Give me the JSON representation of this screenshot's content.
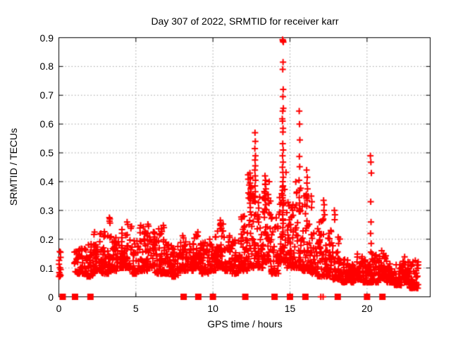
{
  "chart_data": {
    "type": "scatter",
    "title": "Day 307 of 2022, SRMTID for receiver karr",
    "xlabel": "GPS time / hours",
    "ylabel": "SRMTID / TECUs",
    "xlim": [
      0,
      24.1
    ],
    "ylim": [
      0,
      0.9
    ],
    "xticks": [
      0,
      5,
      10,
      15,
      20
    ],
    "xtick_labels": [
      "0",
      "5",
      "10",
      "15",
      "20"
    ],
    "yticks": [
      0,
      0.1,
      0.2,
      0.3,
      0.4,
      0.5,
      0.6,
      0.7,
      0.8,
      0.9
    ],
    "ytick_labels": [
      "0",
      "0.1",
      "0.2",
      "0.3",
      "0.4",
      "0.5",
      "0.6",
      "0.7",
      "0.8",
      "0.9"
    ],
    "grid": {
      "show": true,
      "style": "dotted",
      "color": "#a0a0a0"
    },
    "legend": "none",
    "marker": {
      "shape": "plus",
      "color": "#ff0000",
      "size": 9,
      "stroke": 2
    },
    "axis_color": "#000000",
    "background": "#ffffff",
    "band_clusters": [
      [
        0.0,
        0.12,
        0.07,
        0.16,
        14
      ],
      [
        1.0,
        1.75,
        0.08,
        0.17,
        48
      ],
      [
        1.75,
        2.25,
        0.07,
        0.2,
        40
      ],
      [
        2.25,
        2.75,
        0.09,
        0.22,
        44
      ],
      [
        2.75,
        3.25,
        0.08,
        0.24,
        44
      ],
      [
        3.25,
        3.75,
        0.09,
        0.21,
        44
      ],
      [
        3.75,
        4.25,
        0.1,
        0.24,
        44
      ],
      [
        4.25,
        4.75,
        0.1,
        0.26,
        44
      ],
      [
        4.75,
        5.25,
        0.08,
        0.2,
        40
      ],
      [
        5.25,
        5.75,
        0.09,
        0.25,
        44
      ],
      [
        5.75,
        6.25,
        0.1,
        0.24,
        44
      ],
      [
        6.25,
        6.75,
        0.08,
        0.24,
        44
      ],
      [
        6.75,
        7.25,
        0.08,
        0.2,
        40
      ],
      [
        7.25,
        7.75,
        0.07,
        0.18,
        40
      ],
      [
        7.75,
        8.25,
        0.09,
        0.22,
        44
      ],
      [
        8.25,
        8.75,
        0.09,
        0.2,
        40
      ],
      [
        8.75,
        9.25,
        0.1,
        0.22,
        44
      ],
      [
        9.25,
        9.75,
        0.08,
        0.19,
        40
      ],
      [
        9.75,
        10.25,
        0.09,
        0.21,
        40
      ],
      [
        10.25,
        10.75,
        0.1,
        0.26,
        44
      ],
      [
        10.75,
        11.25,
        0.09,
        0.22,
        44
      ],
      [
        11.25,
        11.75,
        0.08,
        0.2,
        40
      ],
      [
        11.75,
        12.25,
        0.09,
        0.28,
        44
      ],
      [
        12.25,
        12.75,
        0.1,
        0.43,
        48
      ],
      [
        12.75,
        13.25,
        0.1,
        0.35,
        44
      ],
      [
        13.25,
        13.75,
        0.12,
        0.4,
        48
      ],
      [
        13.75,
        14.25,
        0.08,
        0.28,
        44
      ],
      [
        14.25,
        14.75,
        0.12,
        0.45,
        44
      ],
      [
        14.75,
        15.25,
        0.1,
        0.33,
        44
      ],
      [
        15.25,
        15.75,
        0.1,
        0.4,
        44
      ],
      [
        15.75,
        16.25,
        0.09,
        0.38,
        44
      ],
      [
        16.25,
        16.75,
        0.08,
        0.3,
        40
      ],
      [
        16.75,
        17.25,
        0.07,
        0.3,
        40
      ],
      [
        17.25,
        17.75,
        0.07,
        0.25,
        40
      ],
      [
        17.75,
        18.25,
        0.06,
        0.22,
        40
      ],
      [
        18.25,
        18.75,
        0.05,
        0.13,
        40
      ],
      [
        18.75,
        19.25,
        0.05,
        0.12,
        40
      ],
      [
        19.25,
        19.75,
        0.06,
        0.15,
        44
      ],
      [
        19.75,
        20.25,
        0.05,
        0.13,
        40
      ],
      [
        20.25,
        20.75,
        0.05,
        0.15,
        44
      ],
      [
        20.75,
        21.25,
        0.06,
        0.15,
        44
      ],
      [
        21.25,
        21.75,
        0.05,
        0.13,
        40
      ],
      [
        21.75,
        22.25,
        0.04,
        0.12,
        40
      ],
      [
        22.25,
        22.75,
        0.05,
        0.14,
        50
      ],
      [
        22.75,
        23.35,
        0.03,
        0.13,
        50
      ]
    ],
    "outliers": [
      [
        2.32,
        0.225
      ],
      [
        3.28,
        0.275
      ],
      [
        3.31,
        0.27
      ],
      [
        3.29,
        0.263
      ],
      [
        3.32,
        0.256
      ],
      [
        4.43,
        0.26
      ],
      [
        4.47,
        0.251
      ],
      [
        5.78,
        0.252
      ],
      [
        5.82,
        0.245
      ],
      [
        6.78,
        0.248
      ],
      [
        6.82,
        0.24
      ],
      [
        9.02,
        0.225
      ],
      [
        10.48,
        0.266
      ],
      [
        10.52,
        0.256
      ],
      [
        10.5,
        0.247
      ],
      [
        12.4,
        0.43
      ],
      [
        12.43,
        0.41
      ],
      [
        12.41,
        0.395
      ],
      [
        12.44,
        0.375
      ],
      [
        12.39,
        0.355
      ],
      [
        12.42,
        0.34
      ],
      [
        12.4,
        0.325
      ],
      [
        12.43,
        0.31
      ],
      [
        12.73,
        0.57
      ],
      [
        12.75,
        0.54
      ],
      [
        12.72,
        0.515
      ],
      [
        12.76,
        0.49
      ],
      [
        12.73,
        0.475
      ],
      [
        12.75,
        0.455
      ],
      [
        12.72,
        0.44
      ],
      [
        12.74,
        0.42
      ],
      [
        12.76,
        0.405
      ],
      [
        12.73,
        0.385
      ],
      [
        12.75,
        0.365
      ],
      [
        12.72,
        0.345
      ],
      [
        12.74,
        0.33
      ],
      [
        13.38,
        0.42
      ],
      [
        13.42,
        0.405
      ],
      [
        13.4,
        0.39
      ],
      [
        13.44,
        0.375
      ],
      [
        13.36,
        0.36
      ],
      [
        13.41,
        0.35
      ],
      [
        13.39,
        0.335
      ],
      [
        13.43,
        0.32
      ],
      [
        13.37,
        0.305
      ],
      [
        14.52,
        0.893
      ],
      [
        14.55,
        0.89
      ],
      [
        14.57,
        0.885
      ],
      [
        14.54,
        0.888
      ],
      [
        14.55,
        0.815
      ],
      [
        14.53,
        0.79
      ],
      [
        14.56,
        0.72
      ],
      [
        14.54,
        0.695
      ],
      [
        14.57,
        0.655
      ],
      [
        14.53,
        0.645
      ],
      [
        14.5,
        0.618
      ],
      [
        14.52,
        0.61
      ],
      [
        14.55,
        0.585
      ],
      [
        14.54,
        0.572
      ],
      [
        14.53,
        0.532
      ],
      [
        14.56,
        0.51
      ],
      [
        14.52,
        0.49
      ],
      [
        14.55,
        0.468
      ],
      [
        14.51,
        0.45
      ],
      [
        14.54,
        0.432
      ],
      [
        14.56,
        0.415
      ],
      [
        14.53,
        0.4
      ],
      [
        14.55,
        0.385
      ],
      [
        14.52,
        0.37
      ],
      [
        14.54,
        0.352
      ],
      [
        14.56,
        0.335
      ],
      [
        14.53,
        0.318
      ],
      [
        14.55,
        0.3
      ],
      [
        14.52,
        0.285
      ],
      [
        14.54,
        0.27
      ],
      [
        14.56,
        0.255
      ],
      [
        14.53,
        0.24
      ],
      [
        14.55,
        0.225
      ],
      [
        14.52,
        0.21
      ],
      [
        15.6,
        0.645
      ],
      [
        15.62,
        0.6
      ],
      [
        15.64,
        0.545
      ],
      [
        15.61,
        0.487
      ],
      [
        15.63,
        0.452
      ],
      [
        15.59,
        0.405
      ],
      [
        15.62,
        0.37
      ],
      [
        15.6,
        0.345
      ],
      [
        15.63,
        0.325
      ],
      [
        15.61,
        0.3
      ],
      [
        16.08,
        0.44
      ],
      [
        16.12,
        0.415
      ],
      [
        16.1,
        0.395
      ],
      [
        16.14,
        0.375
      ],
      [
        16.06,
        0.355
      ],
      [
        16.11,
        0.335
      ],
      [
        16.09,
        0.315
      ],
      [
        16.38,
        0.35
      ],
      [
        16.42,
        0.33
      ],
      [
        16.4,
        0.31
      ],
      [
        17.18,
        0.335
      ],
      [
        17.22,
        0.32
      ],
      [
        17.2,
        0.3
      ],
      [
        17.25,
        0.285
      ],
      [
        17.16,
        0.27
      ],
      [
        17.88,
        0.3
      ],
      [
        17.92,
        0.285
      ],
      [
        17.9,
        0.268
      ],
      [
        20.22,
        0.49
      ],
      [
        20.25,
        0.468
      ],
      [
        20.28,
        0.43
      ],
      [
        20.24,
        0.33
      ],
      [
        20.26,
        0.26
      ],
      [
        20.23,
        0.22
      ],
      [
        20.27,
        0.185
      ],
      [
        20.25,
        0.155
      ],
      [
        20.95,
        0.16
      ]
    ],
    "zero_squares": [
      0.25,
      1.05,
      2.05,
      8.1,
      9.05,
      10.0,
      12.1,
      14.0,
      15.0,
      16.0,
      18.1,
      20.0,
      21.0
    ],
    "zero_plus_markers": [
      17.0,
      17.15
    ]
  }
}
